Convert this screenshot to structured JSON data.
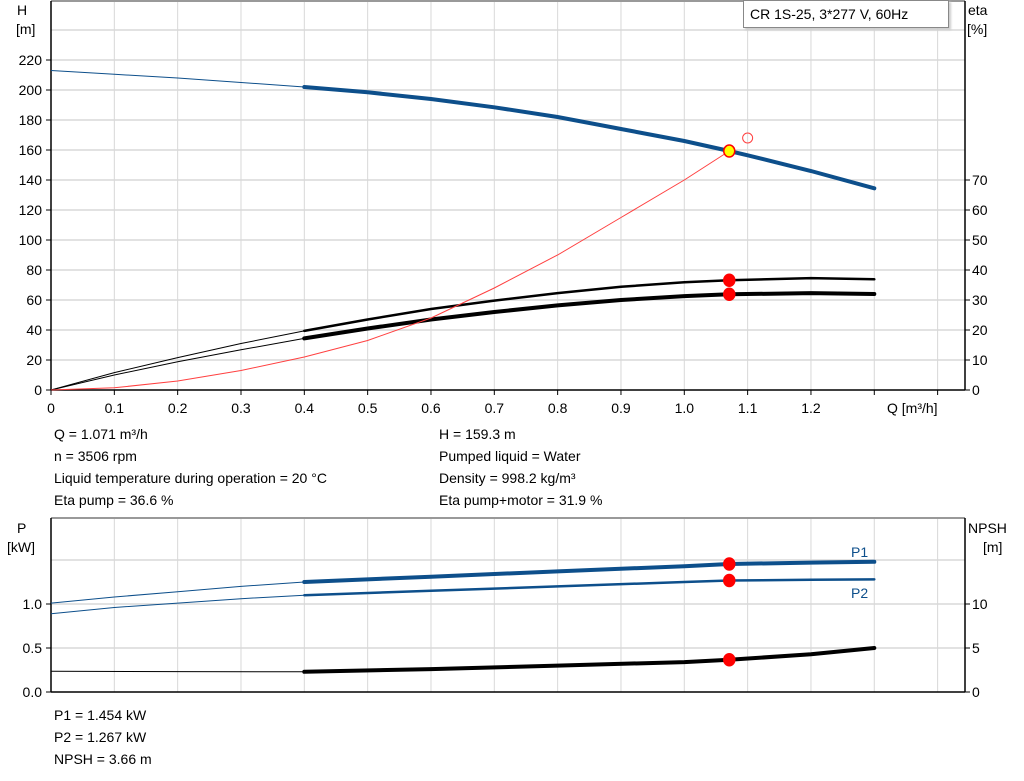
{
  "chart_data": [
    {
      "type": "line",
      "title": "CR 1S-25, 3*277 V, 60Hz",
      "xlabel": "Q [m³/h]",
      "ylabel": "H [m]",
      "ylabel_parts": [
        "H",
        "[m]"
      ],
      "y2label_parts": [
        "eta",
        "[%]"
      ],
      "xlim": [
        0,
        1.4
      ],
      "ylim": [
        0,
        240
      ],
      "y2lim": [
        0,
        80
      ],
      "grid": true,
      "x_ticks": [
        "0",
        "0.1",
        "0.2",
        "0.3",
        "0.4",
        "0.5",
        "0.6",
        "0.7",
        "0.8",
        "0.9",
        "1.0",
        "1.1",
        "1.2"
      ],
      "y_ticks": [
        "0",
        "20",
        "40",
        "60",
        "80",
        "100",
        "120",
        "140",
        "160",
        "180",
        "200",
        "220"
      ],
      "y2_ticks": [
        "0",
        "10",
        "20",
        "30",
        "40",
        "50",
        "60",
        "70"
      ],
      "series": [
        {
          "axis": "H",
          "color": "#0d4f8b",
          "thick_from": 0.4,
          "x": [
            0,
            0.1,
            0.2,
            0.3,
            0.4,
            0.5,
            0.6,
            0.7,
            0.8,
            0.9,
            1.0,
            1.071,
            1.1,
            1.2,
            1.3
          ],
          "y": [
            213,
            210.5,
            208,
            205,
            202,
            198.5,
            194,
            188.5,
            182,
            174,
            166,
            159.3,
            156.5,
            146,
            134.5
          ]
        },
        {
          "axis": "eta",
          "color": "#000000",
          "thick_from": 0.4,
          "x": [
            0,
            0.1,
            0.2,
            0.3,
            0.4,
            0.5,
            0.6,
            0.7,
            0.8,
            0.9,
            1.0,
            1.071,
            1.2,
            1.3
          ],
          "y": [
            0,
            5.8,
            10.8,
            15.5,
            19.7,
            23.5,
            27,
            29.8,
            32.3,
            34.4,
            35.9,
            36.6,
            37.3,
            36.9
          ]
        },
        {
          "axis": "eta",
          "color": "#000000",
          "thick_from": 0.4,
          "x": [
            0,
            0.1,
            0.2,
            0.3,
            0.4,
            0.5,
            0.6,
            0.7,
            0.8,
            0.9,
            1.0,
            1.071,
            1.2,
            1.3
          ],
          "y": [
            0,
            5,
            9.4,
            13.4,
            17.2,
            20.5,
            23.5,
            26,
            28.2,
            30,
            31.3,
            31.9,
            32.3,
            32
          ]
        },
        {
          "axis": "H",
          "color": "#ff4040",
          "thick_from": null,
          "x": [
            0,
            0.1,
            0.2,
            0.3,
            0.4,
            0.5,
            0.6,
            0.7,
            0.8,
            0.9,
            1.0,
            1.071
          ],
          "y": [
            0,
            1.5,
            6,
            13,
            22,
            33,
            48,
            68,
            90,
            115,
            140,
            159.3
          ]
        }
      ],
      "operating_points": [
        {
          "x": 1.071,
          "y": 159.3,
          "axis": "H",
          "color": "#ffff00"
        },
        {
          "x": 1.071,
          "y": 36.6,
          "axis": "eta",
          "color": "#ff0000"
        },
        {
          "x": 1.071,
          "y": 31.9,
          "axis": "eta",
          "color": "#ff0000"
        }
      ],
      "reference_point": {
        "x": 1.1,
        "y": 168,
        "axis": "H"
      }
    },
    {
      "type": "line",
      "ylabel_parts": [
        "P",
        "[kW]"
      ],
      "y2label_parts": [
        "NPSH",
        "[m]"
      ],
      "xlim": [
        0,
        1.4
      ],
      "ylim": [
        0,
        2.0
      ],
      "y2lim": [
        0,
        20
      ],
      "grid": true,
      "y_ticks": [
        "0.0",
        "0.5",
        "1.0"
      ],
      "y2_ticks": [
        "0",
        "5",
        "10"
      ],
      "series": [
        {
          "name": "P1",
          "axis": "P",
          "color": "#0d4f8b",
          "thick_from": 0.4,
          "x": [
            0,
            0.1,
            0.2,
            0.3,
            0.4,
            0.6,
            0.8,
            1.0,
            1.071,
            1.2,
            1.3
          ],
          "y": [
            1.01,
            1.08,
            1.14,
            1.2,
            1.25,
            1.31,
            1.37,
            1.43,
            1.454,
            1.47,
            1.48
          ]
        },
        {
          "name": "P2",
          "axis": "P",
          "color": "#0d4f8b",
          "thick_from": 0.4,
          "x": [
            0,
            0.1,
            0.2,
            0.3,
            0.4,
            0.6,
            0.8,
            1.0,
            1.071,
            1.2,
            1.3
          ],
          "y": [
            0.89,
            0.96,
            1.01,
            1.06,
            1.1,
            1.15,
            1.2,
            1.25,
            1.267,
            1.275,
            1.28
          ]
        },
        {
          "axis": "NPSH",
          "color": "#000000",
          "thick_from": 0.4,
          "x": [
            0,
            0.2,
            0.4,
            0.6,
            0.8,
            1.0,
            1.071,
            1.2,
            1.3
          ],
          "y": [
            2.35,
            2.32,
            2.3,
            2.6,
            3.0,
            3.4,
            3.66,
            4.3,
            5.0
          ]
        }
      ],
      "operating_points": [
        {
          "x": 1.071,
          "y": 1.454,
          "axis": "P",
          "color": "#ff0000"
        },
        {
          "x": 1.071,
          "y": 1.267,
          "axis": "P",
          "color": "#ff0000"
        },
        {
          "x": 1.071,
          "y": 3.66,
          "axis": "NPSH",
          "color": "#ff0000"
        }
      ]
    }
  ],
  "readouts_top_left": [
    "Q = 1.071 m³/h",
    "n = 3506 rpm",
    "Liquid temperature during operation = 20 °C",
    "Eta pump = 36.6 %"
  ],
  "readouts_top_right": [
    "H = 159.3 m",
    "Pumped liquid = Water",
    "Density = 998.2 kg/m³",
    "Eta pump+motor = 31.9 %"
  ],
  "readouts_bottom": [
    "P1 = 1.454 kW",
    "P2 = 1.267 kW",
    "NPSH = 3.66 m"
  ]
}
